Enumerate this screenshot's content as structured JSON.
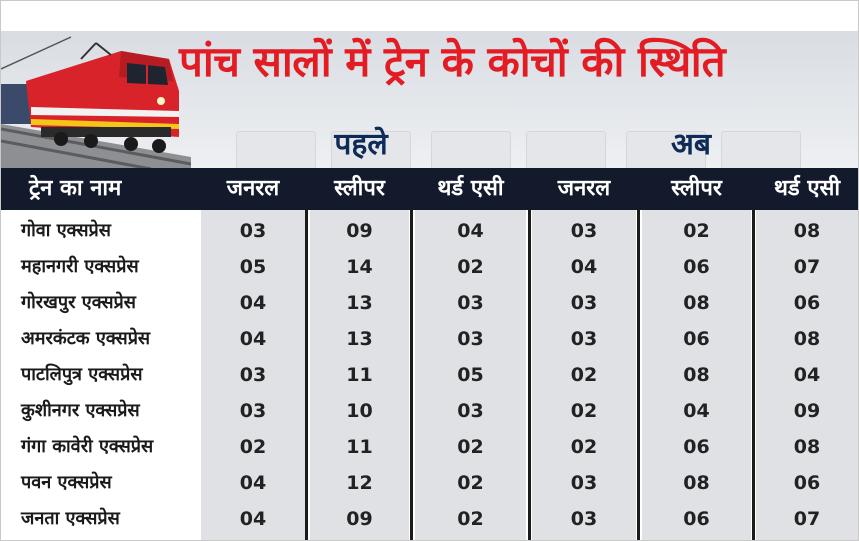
{
  "title": "पांच सालों में ट्रेन के कोचों की स्थिति",
  "groups": {
    "before": "पहले",
    "now": "अब"
  },
  "headers": [
    "ट्रेन का नाम",
    "जनरल",
    "स्लीपर",
    "थर्ड एसी",
    "जनरल",
    "स्लीपर",
    "थर्ड एसी"
  ],
  "rows": [
    {
      "name": "गोवा एक्सप्रेस",
      "values": [
        "03",
        "09",
        "04",
        "03",
        "02",
        "08"
      ]
    },
    {
      "name": "महानगरी एक्सप्रेस",
      "values": [
        "05",
        "14",
        "02",
        "04",
        "06",
        "07"
      ]
    },
    {
      "name": "गोरखपुर एक्सप्रेस",
      "values": [
        "04",
        "13",
        "03",
        "03",
        "08",
        "06"
      ]
    },
    {
      "name": "अमरकंटक एक्सप्रेस",
      "values": [
        "04",
        "13",
        "03",
        "03",
        "06",
        "08"
      ]
    },
    {
      "name": "पाटलिपुत्र एक्सप्रेस",
      "values": [
        "03",
        "11",
        "05",
        "02",
        "08",
        "04"
      ]
    },
    {
      "name": "कुशीनगर एक्सप्रेस",
      "values": [
        "03",
        "10",
        "03",
        "02",
        "04",
        "09"
      ]
    },
    {
      "name": "गंगा कावेरी एक्सप्रेस",
      "values": [
        "02",
        "11",
        "02",
        "02",
        "06",
        "08"
      ]
    },
    {
      "name": "पवन एक्सप्रेस",
      "values": [
        "04",
        "12",
        "02",
        "03",
        "08",
        "06"
      ]
    },
    {
      "name": "जनता  एक्सप्रेस",
      "values": [
        "04",
        "09",
        "02",
        "03",
        "06",
        "07"
      ]
    }
  ],
  "colors": {
    "title": "#e31b23",
    "group_label": "#0e2a57",
    "header_bg": "#131a2c",
    "column_shade": "#dfe1e5",
    "locomotive": "#d8232a"
  },
  "icons": [
    "train-locomotive-icon"
  ]
}
